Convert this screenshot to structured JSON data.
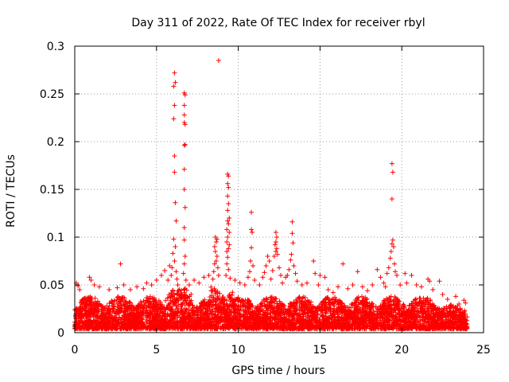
{
  "chart_data": {
    "type": "scatter",
    "title": "Day 311 of 2022, Rate Of TEC Index for receiver rbyl",
    "xlabel": "GPS time / hours",
    "ylabel": "ROTI / TECUs",
    "xlim": [
      0,
      25
    ],
    "ylim": [
      0,
      0.3
    ],
    "x_ticks": [
      0,
      5,
      10,
      15,
      20,
      25
    ],
    "x_tick_labels": [
      "0",
      "5",
      "10",
      "15",
      "20",
      "25"
    ],
    "y_ticks": [
      0,
      0.05,
      0.1,
      0.15,
      0.2,
      0.25,
      0.3
    ],
    "y_tick_labels": [
      "0",
      "0.05",
      "0.1",
      "0.15",
      "0.2",
      "0.25",
      "0.3"
    ],
    "grid": true,
    "marker": "plus",
    "color": "#ff0000",
    "series": [
      {
        "name": "ROTI",
        "points": [
          [
            8.8,
            0.285
          ],
          [
            6.1,
            0.272
          ],
          [
            6.15,
            0.262
          ],
          [
            6.05,
            0.258
          ],
          [
            6.1,
            0.238
          ],
          [
            6.05,
            0.224
          ],
          [
            6.1,
            0.185
          ],
          [
            6.1,
            0.168
          ],
          [
            6.15,
            0.136
          ],
          [
            6.2,
            0.117
          ],
          [
            6.05,
            0.098
          ],
          [
            6.15,
            0.09
          ],
          [
            6.0,
            0.083
          ],
          [
            6.1,
            0.075
          ],
          [
            5.95,
            0.068
          ],
          [
            6.2,
            0.064
          ],
          [
            5.9,
            0.06
          ],
          [
            6.25,
            0.056
          ],
          [
            5.7,
            0.055
          ],
          [
            6.3,
            0.05
          ],
          [
            6.7,
            0.251
          ],
          [
            6.75,
            0.249
          ],
          [
            6.7,
            0.238
          ],
          [
            6.7,
            0.228
          ],
          [
            6.7,
            0.22
          ],
          [
            6.75,
            0.218
          ],
          [
            6.7,
            0.196
          ],
          [
            6.75,
            0.197
          ],
          [
            6.7,
            0.171
          ],
          [
            6.7,
            0.15
          ],
          [
            6.75,
            0.131
          ],
          [
            6.7,
            0.11
          ],
          [
            6.7,
            0.097
          ],
          [
            6.75,
            0.08
          ],
          [
            6.7,
            0.072
          ],
          [
            6.65,
            0.062
          ],
          [
            6.8,
            0.055
          ],
          [
            9.35,
            0.166
          ],
          [
            9.4,
            0.164
          ],
          [
            9.35,
            0.156
          ],
          [
            9.4,
            0.152
          ],
          [
            9.35,
            0.143
          ],
          [
            9.4,
            0.135
          ],
          [
            9.35,
            0.128
          ],
          [
            9.45,
            0.12
          ],
          [
            9.35,
            0.117
          ],
          [
            9.4,
            0.114
          ],
          [
            9.3,
            0.108
          ],
          [
            9.45,
            0.105
          ],
          [
            9.35,
            0.1
          ],
          [
            9.3,
            0.095
          ],
          [
            9.45,
            0.092
          ],
          [
            9.4,
            0.088
          ],
          [
            9.3,
            0.085
          ],
          [
            9.35,
            0.079
          ],
          [
            9.3,
            0.072
          ],
          [
            9.4,
            0.066
          ],
          [
            9.25,
            0.06
          ],
          [
            9.5,
            0.057
          ],
          [
            8.6,
            0.1
          ],
          [
            8.7,
            0.098
          ],
          [
            8.65,
            0.095
          ],
          [
            8.55,
            0.09
          ],
          [
            8.6,
            0.085
          ],
          [
            8.7,
            0.08
          ],
          [
            8.65,
            0.075
          ],
          [
            8.55,
            0.072
          ],
          [
            8.75,
            0.068
          ],
          [
            8.5,
            0.064
          ],
          [
            8.8,
            0.06
          ],
          [
            8.45,
            0.056
          ],
          [
            10.8,
            0.126
          ],
          [
            10.8,
            0.108
          ],
          [
            10.85,
            0.105
          ],
          [
            10.8,
            0.089
          ],
          [
            10.75,
            0.075
          ],
          [
            10.9,
            0.07
          ],
          [
            10.7,
            0.064
          ],
          [
            10.6,
            0.058
          ],
          [
            12.3,
            0.105
          ],
          [
            12.35,
            0.1
          ],
          [
            12.3,
            0.095
          ],
          [
            12.25,
            0.092
          ],
          [
            12.35,
            0.088
          ],
          [
            12.3,
            0.085
          ],
          [
            12.4,
            0.082
          ],
          [
            12.2,
            0.08
          ],
          [
            11.8,
            0.08
          ],
          [
            11.9,
            0.075
          ],
          [
            11.7,
            0.07
          ],
          [
            12.5,
            0.068
          ],
          [
            12.1,
            0.065
          ],
          [
            11.6,
            0.063
          ],
          [
            12.6,
            0.06
          ],
          [
            13.3,
            0.116
          ],
          [
            13.3,
            0.104
          ],
          [
            13.35,
            0.094
          ],
          [
            13.25,
            0.082
          ],
          [
            13.2,
            0.076
          ],
          [
            13.4,
            0.07
          ],
          [
            13.1,
            0.066
          ],
          [
            13.5,
            0.062
          ],
          [
            13.0,
            0.06
          ],
          [
            12.9,
            0.058
          ],
          [
            19.4,
            0.177
          ],
          [
            19.45,
            0.168
          ],
          [
            19.4,
            0.14
          ],
          [
            19.45,
            0.097
          ],
          [
            19.4,
            0.093
          ],
          [
            19.5,
            0.09
          ],
          [
            19.35,
            0.085
          ],
          [
            19.3,
            0.078
          ],
          [
            19.55,
            0.072
          ],
          [
            19.2,
            0.068
          ],
          [
            19.6,
            0.064
          ],
          [
            19.1,
            0.062
          ],
          [
            19.7,
            0.06
          ],
          [
            2.8,
            0.072
          ],
          [
            14.6,
            0.075
          ],
          [
            14.7,
            0.062
          ],
          [
            15.0,
            0.06
          ],
          [
            15.3,
            0.058
          ],
          [
            16.4,
            0.072
          ],
          [
            17.3,
            0.064
          ],
          [
            18.5,
            0.066
          ],
          [
            18.7,
            0.058
          ],
          [
            20.2,
            0.062
          ],
          [
            20.6,
            0.06
          ],
          [
            21.6,
            0.056
          ],
          [
            21.7,
            0.054
          ],
          [
            22.3,
            0.054
          ],
          [
            23.3,
            0.038
          ],
          [
            23.8,
            0.034
          ],
          [
            23.9,
            0.031
          ],
          [
            0.1,
            0.052
          ],
          [
            0.2,
            0.049
          ],
          [
            0.3,
            0.045
          ],
          [
            0.9,
            0.058
          ],
          [
            1.0,
            0.055
          ],
          [
            1.2,
            0.05
          ],
          [
            1.5,
            0.048
          ],
          [
            2.1,
            0.045
          ],
          [
            2.6,
            0.047
          ],
          [
            3.0,
            0.05
          ],
          [
            3.4,
            0.045
          ],
          [
            3.8,
            0.048
          ],
          [
            4.2,
            0.046
          ],
          [
            4.4,
            0.052
          ],
          [
            4.7,
            0.05
          ],
          [
            5.0,
            0.055
          ],
          [
            5.3,
            0.06
          ],
          [
            5.5,
            0.065
          ],
          [
            5.8,
            0.07
          ],
          [
            7.0,
            0.05
          ],
          [
            7.3,
            0.055
          ],
          [
            7.6,
            0.052
          ],
          [
            7.9,
            0.058
          ],
          [
            8.2,
            0.06
          ],
          [
            9.8,
            0.055
          ],
          [
            10.1,
            0.052
          ],
          [
            10.4,
            0.05
          ],
          [
            11.0,
            0.055
          ],
          [
            11.3,
            0.05
          ],
          [
            11.5,
            0.058
          ],
          [
            12.0,
            0.056
          ],
          [
            12.7,
            0.052
          ],
          [
            13.6,
            0.054
          ],
          [
            13.9,
            0.05
          ],
          [
            14.2,
            0.052
          ],
          [
            14.9,
            0.05
          ],
          [
            15.5,
            0.045
          ],
          [
            15.8,
            0.042
          ],
          [
            16.1,
            0.048
          ],
          [
            16.7,
            0.046
          ],
          [
            17.0,
            0.05
          ],
          [
            17.6,
            0.048
          ],
          [
            17.9,
            0.044
          ],
          [
            18.2,
            0.05
          ],
          [
            18.9,
            0.052
          ],
          [
            19.0,
            0.048
          ],
          [
            19.9,
            0.05
          ],
          [
            20.3,
            0.052
          ],
          [
            20.9,
            0.05
          ],
          [
            21.2,
            0.048
          ],
          [
            21.9,
            0.045
          ],
          [
            22.5,
            0.04
          ],
          [
            22.8,
            0.035
          ],
          [
            23.5,
            0.03
          ]
        ]
      }
    ]
  }
}
